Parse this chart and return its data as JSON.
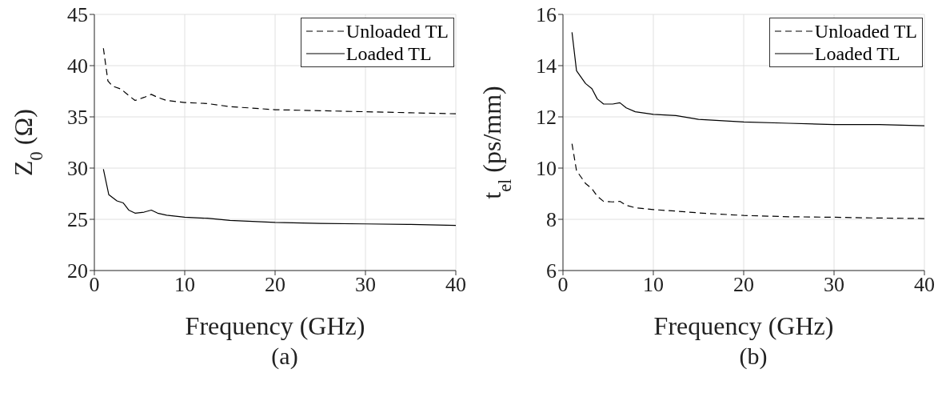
{
  "chart_data": [
    {
      "type": "line",
      "xlabel": "Frequency (GHz)",
      "ylabel": "Z$_{0}$ (Ω)",
      "xlim": [
        0,
        40
      ],
      "xticks": [
        0,
        10,
        20,
        30,
        40
      ],
      "ylim": [
        20,
        45
      ],
      "yticks": [
        20,
        25,
        30,
        35,
        40,
        45
      ],
      "grid": true,
      "legend": "top right",
      "annotations": [
        "(a)"
      ],
      "series": [
        {
          "name": "Unloaded TL",
          "color": "#000000",
          "line_style": "dashed",
          "x": [
            1,
            1.5,
            2,
            3,
            3.5,
            4.5,
            5.5,
            6.3,
            7,
            8,
            10,
            12.5,
            15,
            20,
            25,
            30,
            35,
            40
          ],
          "values": [
            41.7,
            38.5,
            38,
            37.7,
            37.3,
            36.6,
            36.9,
            37.2,
            36.9,
            36.6,
            36.4,
            36.3,
            36.0,
            35.7,
            35.6,
            35.5,
            35.4,
            35.3
          ]
        },
        {
          "name": "Loaded TL",
          "color": "#000000",
          "line_style": "solid",
          "x": [
            1,
            1.6,
            2.5,
            3.2,
            3.8,
            4.5,
            5.5,
            6.3,
            7,
            8,
            10,
            12.5,
            15,
            20,
            25,
            30,
            35,
            40
          ],
          "values": [
            29.9,
            27.4,
            26.8,
            26.6,
            25.9,
            25.6,
            25.7,
            25.9,
            25.6,
            25.4,
            25.2,
            25.1,
            24.9,
            24.7,
            24.6,
            24.55,
            24.5,
            24.4
          ]
        }
      ]
    },
    {
      "type": "line",
      "xlabel": "Frequency (GHz)",
      "ylabel": "t$_{el}$ (ps/mm)",
      "xlim": [
        0,
        40
      ],
      "xticks": [
        0,
        10,
        20,
        30,
        40
      ],
      "ylim": [
        6,
        16
      ],
      "yticks": [
        6,
        8,
        10,
        12,
        14,
        16
      ],
      "grid": true,
      "legend": "top right",
      "annotations": [
        "(b)"
      ],
      "series": [
        {
          "name": "Unloaded TL",
          "color": "#000000",
          "line_style": "dashed",
          "x": [
            1,
            1.5,
            2.5,
            3.2,
            3.8,
            4.5,
            5.5,
            6.3,
            7,
            8,
            10,
            12.5,
            15,
            20,
            25,
            30,
            35,
            40
          ],
          "values": [
            10.95,
            9.9,
            9.4,
            9.2,
            8.9,
            8.7,
            8.68,
            8.7,
            8.55,
            8.45,
            8.38,
            8.32,
            8.25,
            8.15,
            8.1,
            8.08,
            8.05,
            8.03
          ]
        },
        {
          "name": "Loaded TL",
          "color": "#000000",
          "line_style": "solid",
          "x": [
            1,
            1.5,
            2.5,
            3.2,
            3.8,
            4.5,
            5.5,
            6.3,
            7,
            8,
            10,
            12.5,
            15,
            20,
            25,
            30,
            35,
            40
          ],
          "values": [
            15.3,
            13.8,
            13.3,
            13.1,
            12.7,
            12.5,
            12.5,
            12.55,
            12.35,
            12.2,
            12.1,
            12.05,
            11.9,
            11.8,
            11.75,
            11.7,
            11.7,
            11.65
          ]
        }
      ]
    }
  ]
}
